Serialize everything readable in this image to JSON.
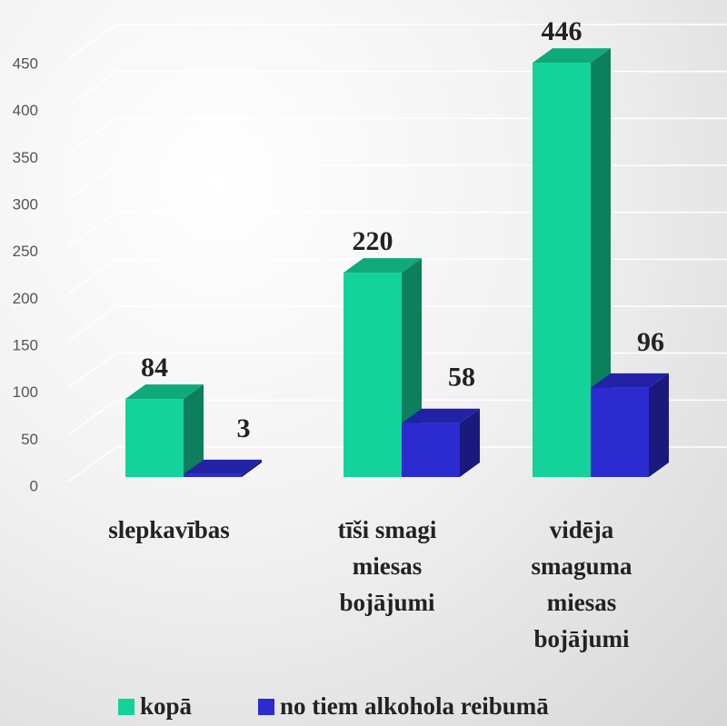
{
  "chart_data": {
    "type": "bar3d",
    "categories": [
      "slepkavības",
      "tīši smagi\nmiesas\nbojājumi",
      "vidēja\nsmaguma\nmiesas\nbojājumi"
    ],
    "series": [
      {
        "name": "kopā",
        "color": "#14d39a",
        "values": [
          84,
          220,
          446
        ]
      },
      {
        "name": "no tiem alkohola reibumā",
        "color": "#2b2bd0",
        "values": [
          3,
          58,
          96
        ]
      }
    ],
    "ylim": [
      0,
      450
    ],
    "yticks": [
      0,
      50,
      100,
      150,
      200,
      250,
      300,
      350,
      400,
      450
    ],
    "grid": true,
    "legend": "bottom"
  }
}
